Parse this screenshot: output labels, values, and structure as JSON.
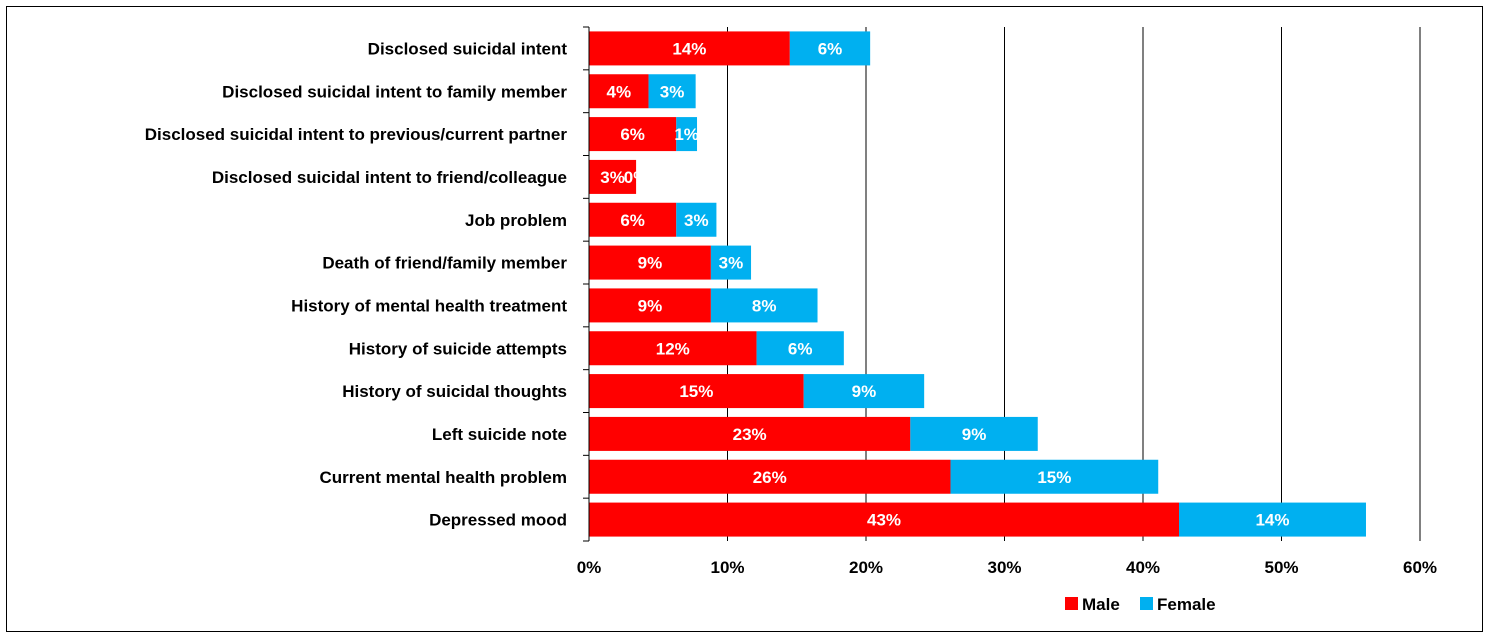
{
  "chart_data": {
    "type": "bar",
    "orientation": "horizontal",
    "stacked": true,
    "title": "",
    "xlabel": "",
    "ylabel": "",
    "xlim": [
      0,
      0.6
    ],
    "x_ticks": [
      "0%",
      "10%",
      "20%",
      "30%",
      "40%",
      "50%",
      "60%"
    ],
    "grid": "vertical",
    "legend_position": "bottom-right",
    "categories": [
      "Disclosed suicidal intent",
      "Disclosed suicidal intent to family member",
      "Disclosed suicidal intent to previous/current partner",
      "Disclosed suicidal intent to friend/colleague",
      "Job problem",
      "Death of friend/family member",
      "History of mental health treatment",
      "History of suicide attempts",
      "History of suicidal thoughts",
      "Left suicide note",
      "Current mental health problem",
      "Depressed mood"
    ],
    "series": [
      {
        "name": "Male",
        "color": "#FF0000",
        "values": [
          0.145,
          0.043,
          0.063,
          0.034,
          0.063,
          0.088,
          0.088,
          0.121,
          0.155,
          0.232,
          0.261,
          0.426
        ],
        "labels": [
          "14%",
          "4%",
          "6%",
          "3%",
          "6%",
          "9%",
          "9%",
          "12%",
          "15%",
          "23%",
          "26%",
          "43%"
        ]
      },
      {
        "name": "Female",
        "color": "#00B0F0",
        "values": [
          0.058,
          0.034,
          0.015,
          0.0,
          0.029,
          0.029,
          0.077,
          0.063,
          0.087,
          0.092,
          0.15,
          0.135
        ],
        "labels": [
          "6%",
          "3%",
          "1%",
          "0%",
          "3%",
          "3%",
          "8%",
          "6%",
          "9%",
          "9%",
          "15%",
          "14%"
        ]
      }
    ]
  }
}
